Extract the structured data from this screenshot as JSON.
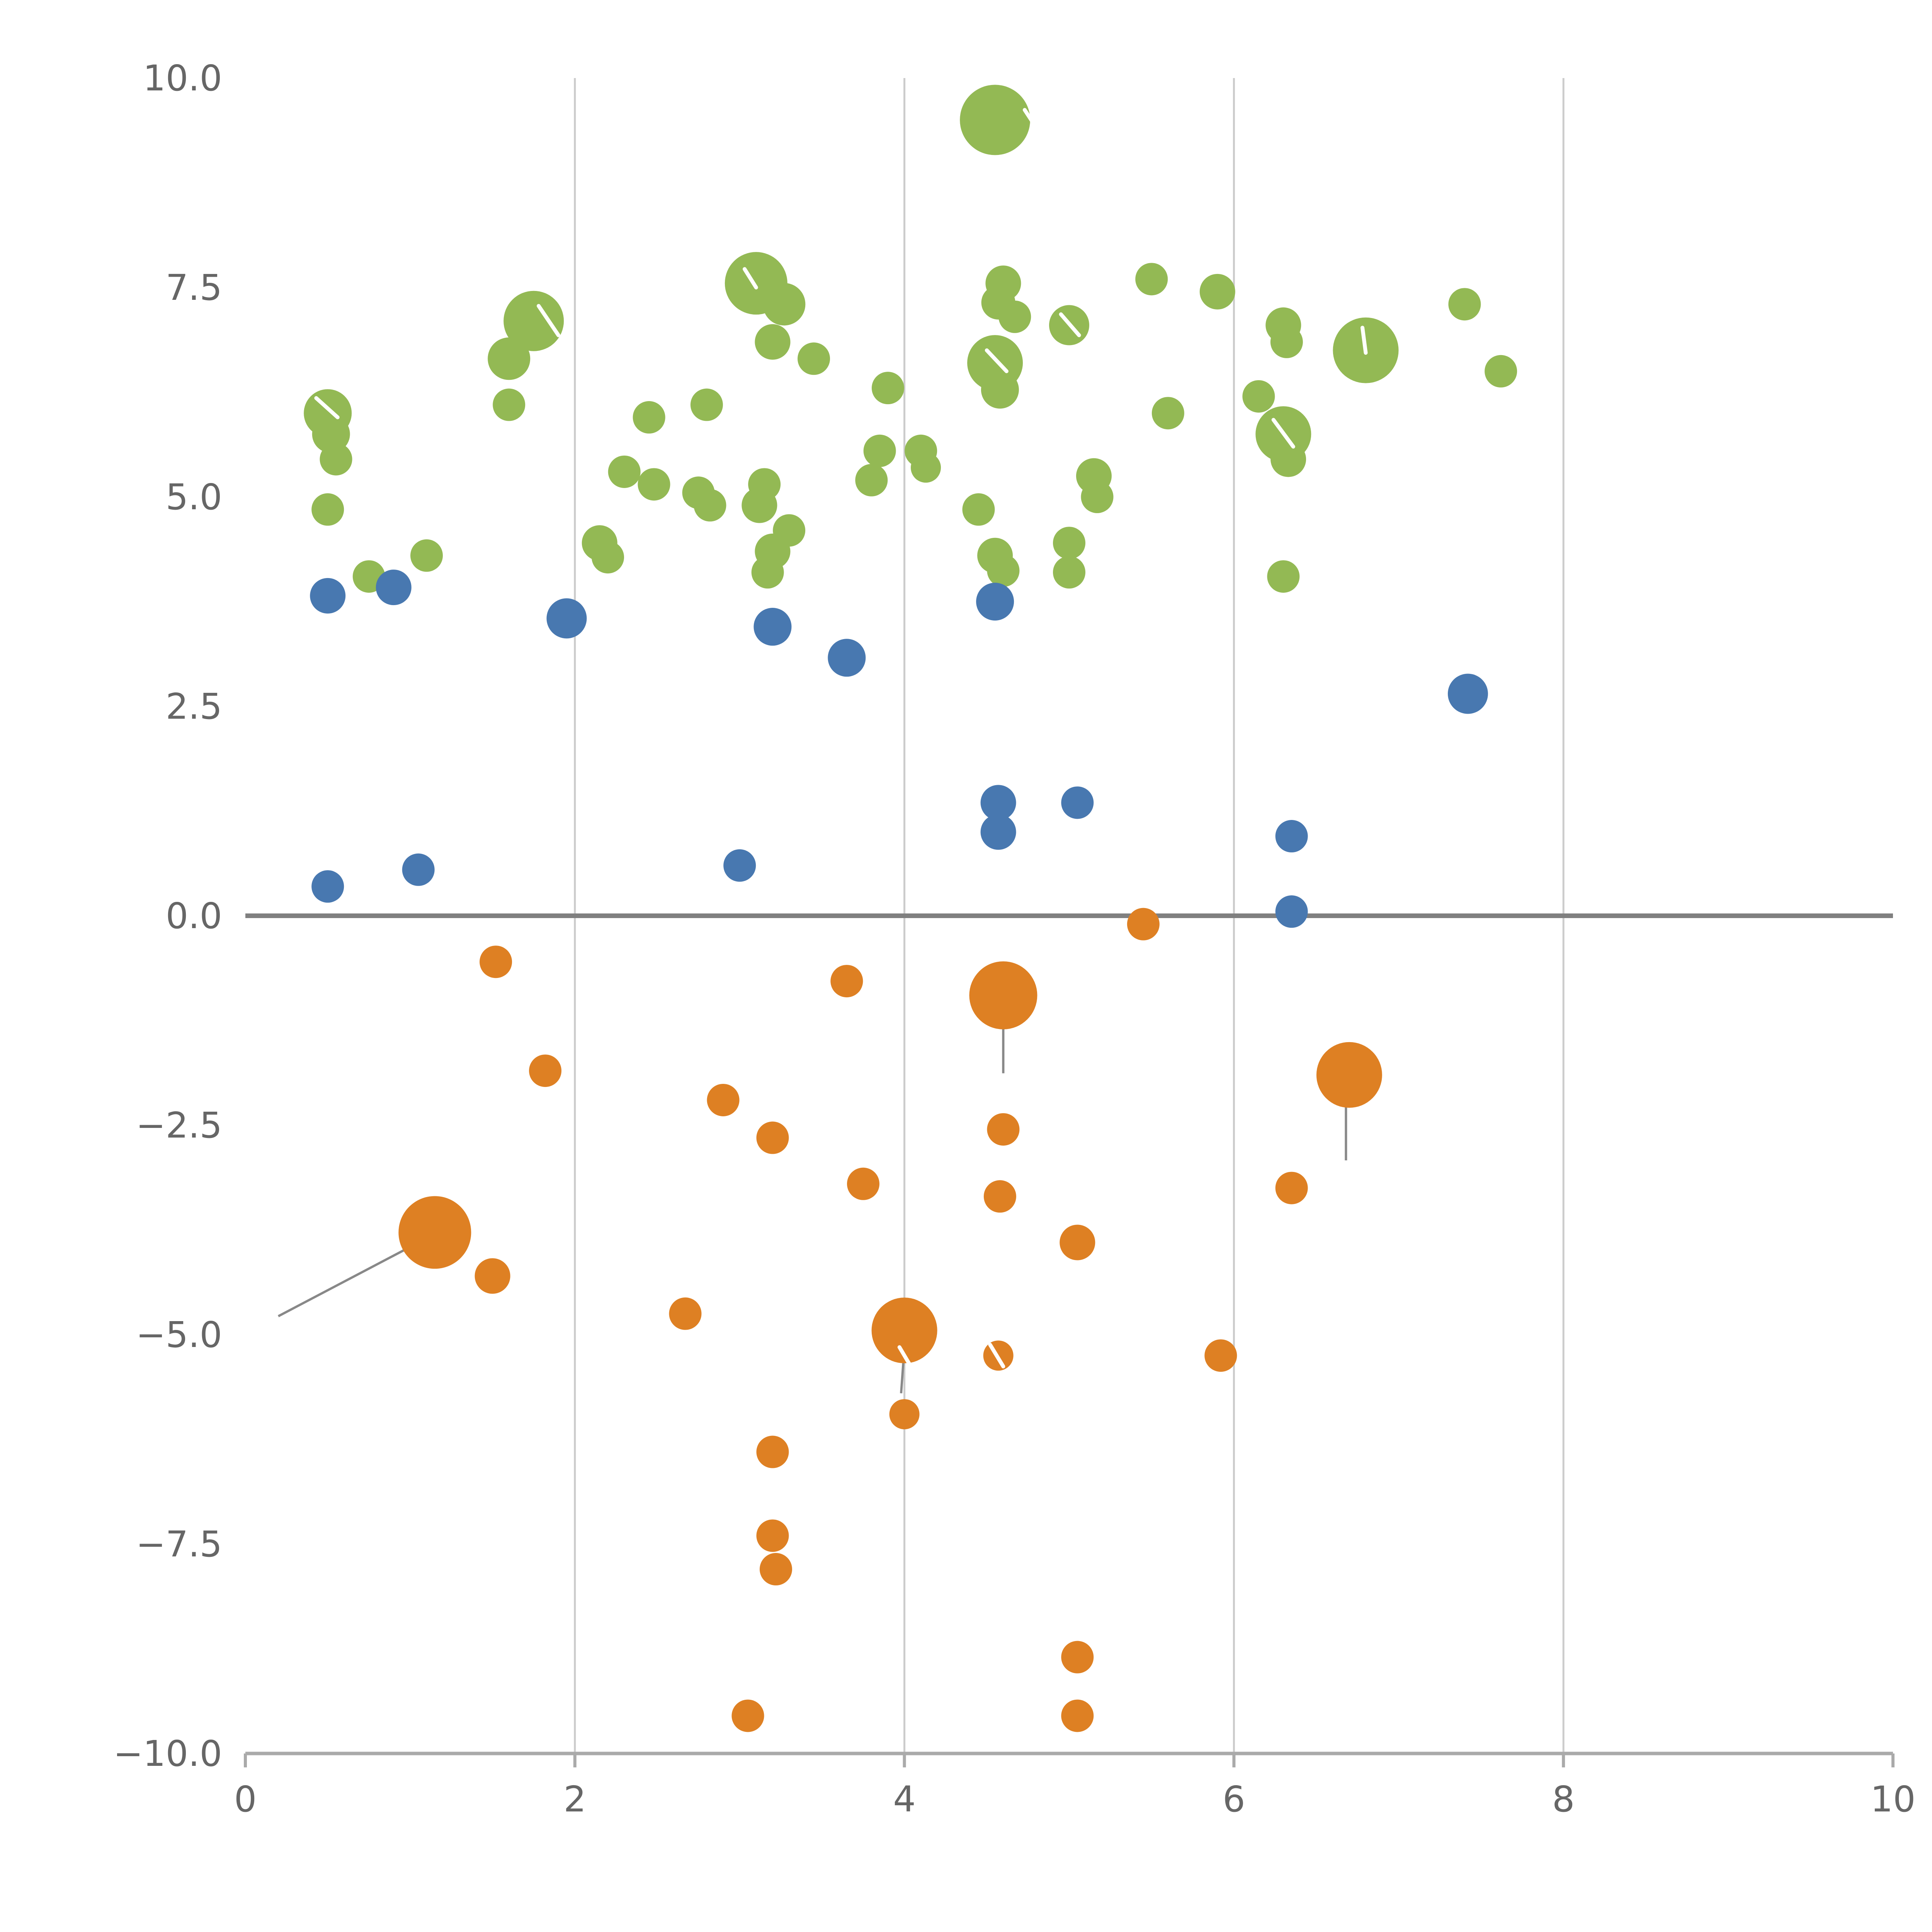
{
  "chart_data": {
    "type": "scatter",
    "title": "",
    "xlabel": "",
    "ylabel": "",
    "xlim": [
      0,
      10
    ],
    "ylim": [
      -10,
      10
    ],
    "grid": true,
    "legend": "none",
    "x_ticks": [
      0,
      2,
      4,
      6,
      8,
      10
    ],
    "x_tick_labels": [
      "0",
      "2",
      "4",
      "6",
      "8",
      "10"
    ],
    "y_ticks": [
      -10,
      -7.5,
      -5,
      -2.5,
      0,
      2.5,
      5,
      7.5,
      10
    ],
    "y_tick_labels": [
      "−10.0",
      "−7.5",
      "−5.0",
      "−2.5",
      "0.0",
      "2.5",
      "5.0",
      "7.5",
      "10.0"
    ],
    "grid_x": [
      2,
      4,
      6,
      8
    ],
    "zero_line_y": 0,
    "colors": {
      "green": "#93B954",
      "blue": "#4878B0",
      "orange": "#DE8023",
      "grid": "#CCCCCC",
      "zero_line": "#808080",
      "axis": "#AAAAAA",
      "tick_text": "#666666",
      "annotation": "#888888",
      "mark": "#FFFFFF"
    },
    "series": [
      {
        "name": "green",
        "color_key": "green",
        "points": [
          [
            4.55,
            9.5,
            91
          ],
          [
            3.1,
            7.55,
            81
          ],
          [
            3.27,
            7.3,
            55
          ],
          [
            1.75,
            7.1,
            78
          ],
          [
            1.6,
            6.65,
            55
          ],
          [
            4.6,
            7.55,
            46
          ],
          [
            4.57,
            7.32,
            44
          ],
          [
            4.67,
            7.15,
            42
          ],
          [
            5.0,
            7.05,
            52
          ],
          [
            5.5,
            7.6,
            42
          ],
          [
            5.9,
            7.45,
            46
          ],
          [
            6.3,
            7.05,
            46
          ],
          [
            6.32,
            6.85,
            42
          ],
          [
            6.8,
            6.75,
            85
          ],
          [
            7.4,
            7.3,
            42
          ],
          [
            7.62,
            6.5,
            42
          ],
          [
            3.45,
            6.65,
            42
          ],
          [
            3.2,
            6.85,
            46
          ],
          [
            1.6,
            6.1,
            42
          ],
          [
            0.5,
            6.0,
            62
          ],
          [
            0.52,
            5.75,
            49
          ],
          [
            0.55,
            5.45,
            42
          ],
          [
            0.5,
            4.85,
            42
          ],
          [
            3.9,
            6.3,
            42
          ],
          [
            4.55,
            6.6,
            72
          ],
          [
            4.58,
            6.28,
            49
          ],
          [
            2.45,
            5.95,
            42
          ],
          [
            2.8,
            6.1,
            42
          ],
          [
            3.85,
            5.55,
            42
          ],
          [
            4.1,
            5.55,
            42
          ],
          [
            4.13,
            5.35,
            39
          ],
          [
            3.8,
            5.2,
            42
          ],
          [
            2.3,
            5.3,
            42
          ],
          [
            2.48,
            5.15,
            42
          ],
          [
            2.75,
            5.05,
            42
          ],
          [
            2.82,
            4.9,
            42
          ],
          [
            3.15,
            5.15,
            42
          ],
          [
            3.12,
            4.9,
            46
          ],
          [
            5.15,
            5.25,
            46
          ],
          [
            5.17,
            5.0,
            42
          ],
          [
            4.45,
            4.85,
            42
          ],
          [
            6.15,
            6.2,
            42
          ],
          [
            6.3,
            5.75,
            72
          ],
          [
            6.33,
            5.45,
            46
          ],
          [
            5.6,
            6.0,
            42
          ],
          [
            2.15,
            4.45,
            46
          ],
          [
            2.2,
            4.28,
            42
          ],
          [
            3.3,
            4.6,
            42
          ],
          [
            3.2,
            4.35,
            46
          ],
          [
            3.17,
            4.1,
            42
          ],
          [
            4.55,
            4.3,
            46
          ],
          [
            4.6,
            4.12,
            42
          ],
          [
            5.0,
            4.45,
            42
          ],
          [
            5.0,
            4.1,
            42
          ],
          [
            6.3,
            4.05,
            42
          ],
          [
            0.75,
            4.05,
            42
          ],
          [
            1.1,
            4.3,
            42
          ]
        ]
      },
      {
        "name": "blue",
        "color_key": "blue",
        "points": [
          [
            0.5,
            3.82,
            46
          ],
          [
            0.9,
            3.92,
            46
          ],
          [
            1.95,
            3.55,
            52
          ],
          [
            3.2,
            3.45,
            49
          ],
          [
            3.65,
            3.08,
            49
          ],
          [
            4.55,
            3.75,
            49
          ],
          [
            7.42,
            2.65,
            52
          ],
          [
            4.57,
            1.35,
            46
          ],
          [
            4.57,
            1.0,
            46
          ],
          [
            5.05,
            1.35,
            42
          ],
          [
            6.35,
            0.95,
            42
          ],
          [
            6.35,
            0.05,
            42
          ],
          [
            0.5,
            0.35,
            42
          ],
          [
            1.05,
            0.55,
            42
          ],
          [
            3.0,
            0.6,
            42
          ]
        ]
      },
      {
        "name": "orange",
        "color_key": "orange",
        "points": [
          [
            5.45,
            -0.1,
            42
          ],
          [
            1.52,
            -0.55,
            42
          ],
          [
            3.65,
            -0.78,
            42
          ],
          [
            4.6,
            -0.95,
            88
          ],
          [
            1.82,
            -1.85,
            42
          ],
          [
            6.7,
            -1.9,
            85
          ],
          [
            2.9,
            -2.2,
            42
          ],
          [
            3.2,
            -2.65,
            42
          ],
          [
            4.6,
            -2.55,
            42
          ],
          [
            3.75,
            -3.2,
            42
          ],
          [
            4.58,
            -3.35,
            42
          ],
          [
            6.35,
            -3.25,
            42
          ],
          [
            5.05,
            -3.9,
            46
          ],
          [
            1.15,
            -3.78,
            94
          ],
          [
            1.5,
            -4.3,
            46
          ],
          [
            2.67,
            -4.75,
            42
          ],
          [
            4.0,
            -4.95,
            85
          ],
          [
            4.57,
            -5.25,
            39
          ],
          [
            5.92,
            -5.25,
            42
          ],
          [
            4.0,
            -5.95,
            39
          ],
          [
            3.2,
            -6.4,
            42
          ],
          [
            3.2,
            -7.4,
            42
          ],
          [
            3.22,
            -7.8,
            42
          ],
          [
            3.05,
            -9.55,
            42
          ],
          [
            5.05,
            -8.85,
            42
          ],
          [
            5.05,
            -9.55,
            42
          ]
        ]
      }
    ],
    "annotation_lines": [
      [
        [
          1.1,
          -3.85
        ],
        [
          0.2,
          -4.78
        ]
      ],
      [
        [
          4.6,
          -1.1
        ],
        [
          4.6,
          -1.88
        ]
      ],
      [
        [
          6.68,
          -2.05
        ],
        [
          6.68,
          -2.92
        ]
      ],
      [
        [
          4.0,
          -5.15
        ],
        [
          3.98,
          -5.7
        ]
      ]
    ],
    "white_marks": [
      [
        [
          0.43,
          6.18
        ],
        [
          0.56,
          5.95
        ]
      ],
      [
        [
          1.78,
          7.28
        ],
        [
          1.9,
          6.93
        ]
      ],
      [
        [
          3.03,
          7.72
        ],
        [
          3.1,
          7.5
        ]
      ],
      [
        [
          4.73,
          9.62
        ],
        [
          4.82,
          9.35
        ]
      ],
      [
        [
          4.95,
          7.18
        ],
        [
          5.06,
          6.93
        ]
      ],
      [
        [
          6.78,
          7.02
        ],
        [
          6.8,
          6.72
        ]
      ],
      [
        [
          6.24,
          5.92
        ],
        [
          6.36,
          5.6
        ]
      ],
      [
        [
          4.5,
          6.75
        ],
        [
          4.62,
          6.5
        ]
      ],
      [
        [
          3.97,
          -5.15
        ],
        [
          4.06,
          -5.45
        ]
      ],
      [
        [
          4.52,
          -5.12
        ],
        [
          4.6,
          -5.38
        ]
      ]
    ]
  }
}
